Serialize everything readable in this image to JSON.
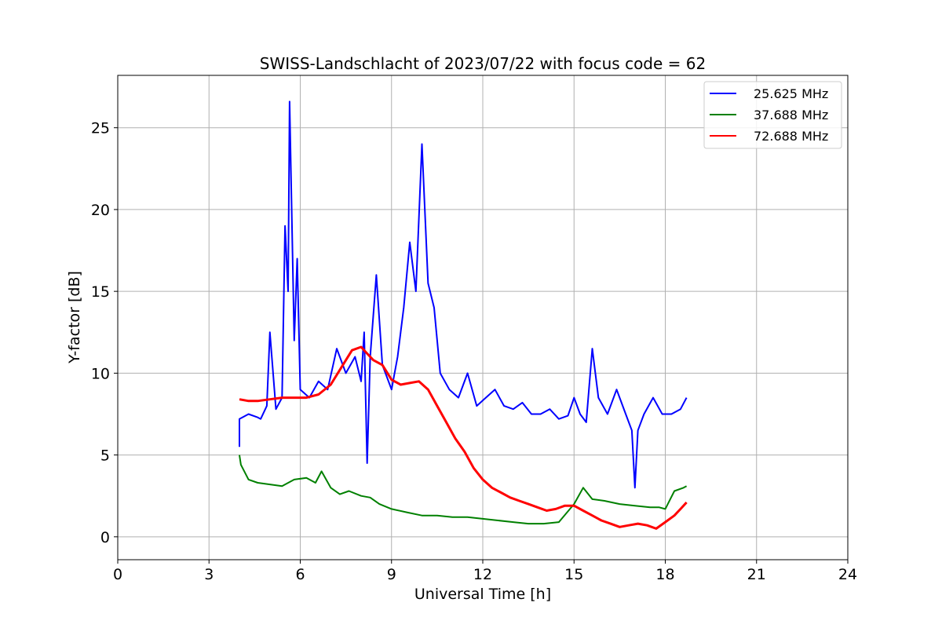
{
  "chart_data": {
    "type": "line",
    "title": "SWISS-Landschlacht of 2023/07/22 with focus code = 62",
    "xlabel": "Universal Time [h]",
    "ylabel": "Y-factor [dB]",
    "xlim": [
      0,
      24
    ],
    "ylim": [
      -1.4,
      28.2
    ],
    "xticks": [
      0,
      3,
      6,
      9,
      12,
      15,
      18,
      21,
      24
    ],
    "yticks": [
      0,
      5,
      10,
      15,
      20,
      25
    ],
    "grid": true,
    "legend_position": "top-right",
    "series": [
      {
        "name": "25.625 MHz",
        "color": "#0000ff",
        "x": [
          4.0,
          4.0,
          4.3,
          4.6,
          4.7,
          4.9,
          5.0,
          5.2,
          5.4,
          5.5,
          5.6,
          5.65,
          5.8,
          5.9,
          6.0,
          6.3,
          6.6,
          6.9,
          7.2,
          7.5,
          7.8,
          8.0,
          8.1,
          8.2,
          8.3,
          8.5,
          8.7,
          9.0,
          9.2,
          9.4,
          9.6,
          9.8,
          10.0,
          10.2,
          10.4,
          10.6,
          10.9,
          11.2,
          11.5,
          11.8,
          12.1,
          12.4,
          12.7,
          13.0,
          13.3,
          13.6,
          13.9,
          14.2,
          14.5,
          14.8,
          15.0,
          15.2,
          15.4,
          15.6,
          15.8,
          16.1,
          16.4,
          16.7,
          16.9,
          17.0,
          17.1,
          17.3,
          17.6,
          17.9,
          18.2,
          18.5,
          18.7
        ],
        "y": [
          5.5,
          7.2,
          7.5,
          7.3,
          7.2,
          8.0,
          12.5,
          7.8,
          8.5,
          19.0,
          15.0,
          26.6,
          12.0,
          17.0,
          9.0,
          8.5,
          9.5,
          9.0,
          11.5,
          10.0,
          11.0,
          9.5,
          12.5,
          4.5,
          11.0,
          16.0,
          10.5,
          9.0,
          11.0,
          14.0,
          18.0,
          15.0,
          24.0,
          15.5,
          14.0,
          10.0,
          9.0,
          8.5,
          10.0,
          8.0,
          8.5,
          9.0,
          8.0,
          7.8,
          8.2,
          7.5,
          7.5,
          7.8,
          7.2,
          7.4,
          8.5,
          7.5,
          7.0,
          11.5,
          8.5,
          7.5,
          9.0,
          7.5,
          6.5,
          3.0,
          6.5,
          7.5,
          8.5,
          7.5,
          7.5,
          7.8,
          8.5
        ]
      },
      {
        "name": "37.688 MHz",
        "color": "#008000",
        "x": [
          4.0,
          4.05,
          4.3,
          4.6,
          5.0,
          5.4,
          5.8,
          6.2,
          6.5,
          6.7,
          7.0,
          7.3,
          7.6,
          8.0,
          8.3,
          8.6,
          9.0,
          9.5,
          10.0,
          10.5,
          11.0,
          11.5,
          12.0,
          12.5,
          13.0,
          13.5,
          14.0,
          14.5,
          15.0,
          15.3,
          15.6,
          16.0,
          16.5,
          17.0,
          17.5,
          17.8,
          18.0,
          18.3,
          18.6,
          18.7
        ],
        "y": [
          5.0,
          4.4,
          3.5,
          3.3,
          3.2,
          3.1,
          3.5,
          3.6,
          3.3,
          4.0,
          3.0,
          2.6,
          2.8,
          2.5,
          2.4,
          2.0,
          1.7,
          1.5,
          1.3,
          1.3,
          1.2,
          1.2,
          1.1,
          1.0,
          0.9,
          0.8,
          0.8,
          0.9,
          2.0,
          3.0,
          2.3,
          2.2,
          2.0,
          1.9,
          1.8,
          1.8,
          1.7,
          2.8,
          3.0,
          3.1
        ]
      },
      {
        "name": "72.688 MHz",
        "color": "#ff0000",
        "x": [
          4.0,
          4.3,
          4.6,
          5.0,
          5.4,
          5.8,
          6.2,
          6.6,
          7.0,
          7.4,
          7.7,
          8.0,
          8.2,
          8.4,
          8.7,
          9.0,
          9.3,
          9.6,
          9.9,
          10.2,
          10.5,
          10.8,
          11.1,
          11.4,
          11.7,
          12.0,
          12.3,
          12.6,
          12.9,
          13.2,
          13.5,
          13.8,
          14.1,
          14.4,
          14.7,
          15.0,
          15.3,
          15.6,
          15.9,
          16.2,
          16.5,
          16.8,
          17.1,
          17.4,
          17.7,
          18.0,
          18.3,
          18.5,
          18.7
        ],
        "y": [
          8.4,
          8.3,
          8.3,
          8.4,
          8.5,
          8.5,
          8.5,
          8.7,
          9.3,
          10.5,
          11.4,
          11.6,
          11.2,
          10.8,
          10.5,
          9.6,
          9.3,
          9.4,
          9.5,
          9.0,
          8.0,
          7.0,
          6.0,
          5.2,
          4.2,
          3.5,
          3.0,
          2.7,
          2.4,
          2.2,
          2.0,
          1.8,
          1.6,
          1.7,
          1.9,
          1.9,
          1.6,
          1.3,
          1.0,
          0.8,
          0.6,
          0.7,
          0.8,
          0.7,
          0.5,
          0.9,
          1.3,
          1.7,
          2.1
        ]
      }
    ]
  }
}
